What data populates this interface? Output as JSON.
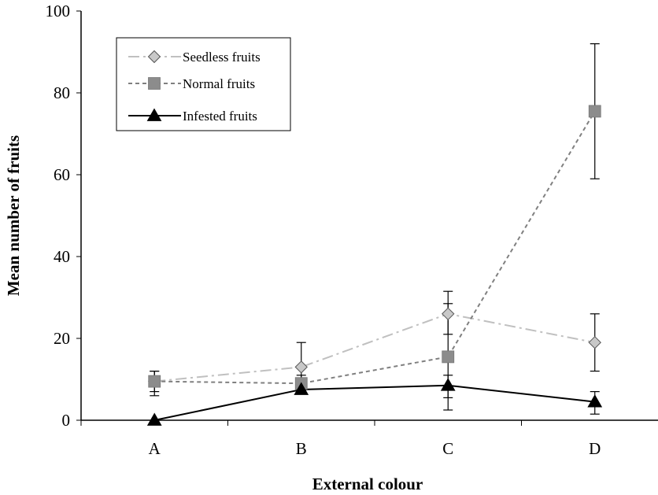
{
  "chart_data": {
    "type": "line",
    "title": "",
    "xlabel": "External colour",
    "ylabel": "Mean number of fruits",
    "categories": [
      "A",
      "B",
      "C",
      "D"
    ],
    "ylim": [
      0,
      100
    ],
    "yticks": [
      "0",
      "20",
      "40",
      "60",
      "80",
      "100"
    ],
    "grid": false,
    "legend_position": "top-left",
    "series": [
      {
        "name": "Seedless fruits",
        "values": [
          9.5,
          13,
          26,
          19
        ],
        "err_low": [
          7,
          9.5,
          21,
          12
        ],
        "err_high": [
          12,
          19,
          31.5,
          26
        ],
        "color": "#c0c0c0",
        "dash": "14 5 3 5",
        "marker": "diamond",
        "marker_fill": "#c8c8c8"
      },
      {
        "name": "Normal fruits",
        "values": [
          9.5,
          9,
          15.5,
          75.5
        ],
        "err_low": [
          6,
          7,
          2.5,
          59
        ],
        "err_high": [
          12,
          11,
          28.5,
          92
        ],
        "color": "#808080",
        "dash": "5 4",
        "marker": "square",
        "marker_fill": "#8c8c8c"
      },
      {
        "name": "Infested fruits",
        "values": [
          0,
          7.5,
          8.5,
          4.5
        ],
        "err_low": [
          0,
          7.5,
          5.5,
          1.5
        ],
        "err_high": [
          0,
          7.5,
          11,
          7
        ],
        "color": "#000000",
        "dash": "",
        "marker": "triangle",
        "marker_fill": "#000000"
      }
    ]
  }
}
